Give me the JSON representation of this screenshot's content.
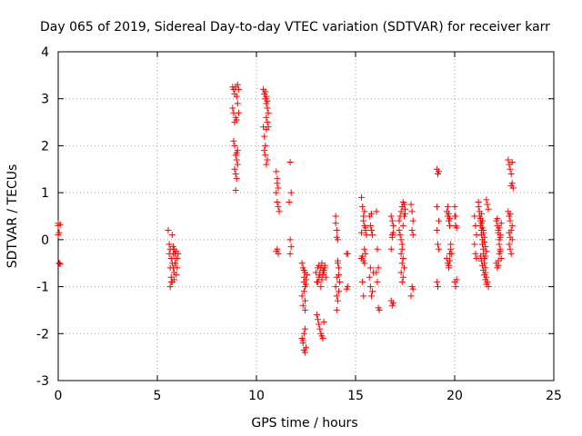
{
  "chart_data": {
    "type": "scatter",
    "title": "Day 065 of 2019, Sidereal Day-to-day VTEC variation (SDTVAR) for receiver karr",
    "xlabel": "GPS time / hours",
    "ylabel": "SDTVAR / TECUs",
    "xlim": [
      0,
      25
    ],
    "ylim": [
      -3,
      4
    ],
    "xticks": [
      0,
      5,
      10,
      15,
      20,
      25
    ],
    "yticks": [
      -3,
      -2,
      -1,
      0,
      1,
      2,
      3,
      4
    ],
    "grid": true,
    "marker": "+",
    "color": "#ff0000",
    "series": [
      {
        "name": "SDTVAR",
        "x": [
          0.0,
          0.0,
          0.0,
          0.05,
          0.05,
          0.05,
          0.1,
          0.1,
          5.55,
          5.6,
          5.6,
          5.65,
          5.65,
          5.7,
          5.7,
          5.75,
          5.75,
          5.8,
          5.8,
          5.85,
          5.85,
          5.9,
          5.9,
          5.95,
          5.95,
          6.0,
          6.0,
          6.05,
          5.65,
          5.7,
          5.75,
          5.8,
          5.85,
          5.9,
          8.8,
          8.8,
          8.85,
          8.85,
          8.9,
          8.9,
          8.95,
          8.95,
          9.0,
          9.0,
          9.05,
          9.05,
          9.1,
          9.1,
          8.85,
          8.9,
          8.95,
          9.0,
          9.05,
          8.9,
          8.95,
          9.0,
          9.05,
          8.95,
          9.0,
          10.35,
          10.35,
          10.4,
          10.4,
          10.45,
          10.45,
          10.5,
          10.5,
          10.55,
          10.55,
          10.6,
          10.6,
          10.45,
          10.5,
          10.55,
          10.4,
          10.45,
          10.5,
          10.55,
          10.5,
          11.0,
          11.05,
          11.1,
          11.0,
          11.05,
          11.1,
          11.15,
          11.05,
          11.1,
          11.0,
          11.05,
          11.7,
          11.75,
          11.7,
          11.75,
          11.7,
          11.65,
          12.3,
          12.35,
          12.4,
          12.45,
          12.3,
          12.35,
          12.4,
          12.45,
          12.3,
          12.35,
          12.4,
          12.45,
          12.5,
          12.35,
          12.4,
          12.45,
          12.4,
          12.45,
          12.5,
          12.55,
          12.4,
          12.45,
          12.5,
          13.0,
          13.05,
          13.1,
          13.15,
          13.2,
          13.25,
          13.3,
          13.35,
          13.4,
          13.45,
          13.5,
          13.05,
          13.1,
          13.15,
          13.2,
          13.25,
          13.3,
          13.35,
          13.4,
          13.1,
          13.15,
          13.2,
          13.25,
          13.3,
          13.35,
          13.4,
          13.45,
          14.0,
          14.0,
          14.05,
          14.05,
          14.1,
          14.1,
          14.15,
          14.15,
          14.2,
          14.0,
          14.05,
          14.1,
          14.15,
          14.05,
          14.1,
          14.05,
          14.55,
          14.6,
          14.55,
          14.6,
          15.3,
          15.35,
          15.4,
          15.45,
          15.5,
          15.55,
          15.3,
          15.35,
          15.4,
          15.45,
          15.5,
          15.4,
          15.45,
          15.5,
          15.35,
          15.4,
          15.45,
          15.3,
          15.7,
          15.75,
          15.8,
          15.85,
          15.9,
          15.7,
          15.75,
          15.8,
          15.85,
          15.75,
          15.8,
          16.05,
          16.1,
          16.15,
          16.05,
          16.1,
          16.15,
          16.2,
          16.8,
          16.85,
          16.9,
          16.8,
          16.85,
          16.9,
          16.85,
          16.8,
          16.85,
          16.9,
          17.2,
          17.25,
          17.3,
          17.35,
          17.4,
          17.45,
          17.5,
          17.2,
          17.25,
          17.3,
          17.35,
          17.4,
          17.45,
          17.3,
          17.35,
          17.4,
          17.3,
          17.35,
          17.4,
          17.45,
          17.5,
          17.35,
          17.8,
          17.85,
          17.9,
          17.85,
          17.9,
          17.85,
          17.9,
          17.8,
          19.1,
          19.15,
          19.2,
          19.1,
          19.15,
          19.2,
          19.1,
          19.15,
          19.1,
          19.2,
          19.6,
          19.65,
          19.7,
          19.75,
          19.8,
          19.85,
          19.6,
          19.65,
          19.7,
          19.75,
          19.8,
          19.65,
          19.7,
          19.75,
          19.7,
          19.75,
          20.0,
          20.05,
          20.1,
          20.0,
          20.05,
          20.1,
          20.0,
          20.05,
          21.0,
          21.05,
          21.1,
          21.0,
          21.05,
          21.1,
          21.2,
          21.25,
          21.3,
          21.35,
          21.4,
          21.45,
          21.5,
          21.55,
          21.6,
          21.65,
          21.7,
          21.2,
          21.25,
          21.3,
          21.35,
          21.4,
          21.45,
          21.5,
          21.55,
          21.6,
          21.65,
          21.7,
          21.3,
          21.35,
          21.4,
          21.45,
          21.5,
          21.55,
          21.6,
          21.3,
          21.35,
          21.4,
          21.45,
          21.5,
          21.55,
          21.6,
          21.35,
          21.4,
          21.45,
          21.5,
          21.55,
          22.1,
          22.15,
          22.2,
          22.25,
          22.3,
          22.35,
          22.1,
          22.15,
          22.2,
          22.25,
          22.3,
          22.35,
          22.15,
          22.2,
          22.25,
          22.3,
          22.2,
          22.25,
          22.3,
          22.7,
          22.75,
          22.8,
          22.85,
          22.9,
          22.95,
          22.7,
          22.75,
          22.8,
          22.85,
          22.9,
          22.75,
          22.8,
          22.85,
          22.9,
          22.8,
          22.85,
          22.9,
          22.75,
          22.8
        ],
        "y": [
          0.35,
          0.3,
          0.1,
          -0.5,
          -0.5,
          0.15,
          -0.52,
          0.32,
          0.2,
          -0.1,
          -0.3,
          -0.6,
          -0.2,
          -0.8,
          -0.4,
          -0.5,
          -0.9,
          -0.3,
          -0.6,
          -0.2,
          -0.7,
          -0.3,
          -0.5,
          -0.25,
          -0.75,
          -0.4,
          -0.6,
          -0.3,
          -1.0,
          -0.9,
          0.1,
          -0.15,
          -0.85,
          -0.5,
          3.25,
          2.8,
          3.2,
          2.7,
          3.1,
          2.5,
          3.25,
          2.6,
          3.05,
          2.55,
          3.3,
          2.9,
          3.2,
          2.7,
          2.1,
          2.0,
          1.8,
          1.7,
          1.9,
          1.5,
          1.4,
          1.3,
          1.6,
          1.05,
          1.85,
          3.2,
          2.4,
          3.1,
          2.2,
          3.0,
          2.0,
          2.9,
          2.6,
          2.8,
          2.5,
          2.7,
          2.4,
          1.8,
          1.6,
          1.7,
          1.9,
          3.15,
          3.05,
          2.95,
          2.35,
          1.45,
          1.3,
          1.1,
          1.0,
          0.8,
          0.7,
          0.6,
          -0.2,
          -0.3,
          -0.25,
          1.2,
          1.65,
          1.0,
          0.0,
          -0.15,
          -0.3,
          0.8,
          -0.5,
          -0.6,
          -0.8,
          -1.0,
          -1.2,
          -1.4,
          -0.9,
          -0.7,
          -2.1,
          -2.2,
          -2.35,
          -2.4,
          -2.3,
          -2.15,
          -2.0,
          -1.9,
          -1.1,
          -1.3,
          -0.85,
          -0.75,
          -0.65,
          -1.5,
          -0.95,
          -0.7,
          -0.9,
          -0.6,
          -0.8,
          -0.75,
          -1.0,
          -0.85,
          -0.65,
          -0.7,
          -0.6,
          -0.8,
          -1.6,
          -1.7,
          -1.8,
          -1.9,
          -2.0,
          -2.05,
          -2.1,
          -1.75,
          -0.9,
          -0.55,
          -0.7,
          -0.6,
          -0.5,
          -0.75,
          -0.65,
          -0.55,
          0.5,
          0.35,
          0.2,
          0.05,
          0.0,
          -0.5,
          -0.6,
          -0.75,
          -0.9,
          -1.0,
          -1.2,
          -1.3,
          -1.1,
          -0.8,
          -0.45,
          -1.5,
          -0.3,
          -0.3,
          -1.05,
          -1.0,
          0.9,
          0.7,
          0.5,
          0.3,
          0.2,
          0.1,
          -0.4,
          -0.35,
          -0.45,
          -0.5,
          -0.3,
          0.4,
          0.6,
          0.25,
          -0.9,
          -1.2,
          -0.2,
          0.15,
          0.5,
          0.3,
          0.2,
          0.1,
          -0.7,
          -0.8,
          -1.0,
          -1.2,
          -1.1,
          -0.6,
          0.55,
          0.6,
          -0.2,
          -0.6,
          -0.7,
          -0.9,
          -1.45,
          -1.5,
          -1.3,
          -1.4,
          -1.35,
          -0.2,
          0.1,
          0.15,
          0.05,
          0.5,
          0.4,
          0.3,
          0.4,
          0.5,
          0.6,
          0.7,
          0.8,
          0.75,
          0.65,
          0.2,
          0.1,
          0.0,
          -0.2,
          -0.4,
          -0.6,
          -0.7,
          -0.5,
          -0.8,
          -0.3,
          -0.1,
          0.3,
          0.5,
          0.55,
          -0.9,
          0.75,
          0.6,
          0.4,
          0.2,
          0.1,
          -1.0,
          -1.05,
          -1.2,
          1.5,
          1.4,
          0.4,
          0.2,
          -0.1,
          -0.2,
          -0.9,
          -1.0,
          0.7,
          1.45,
          0.6,
          0.5,
          0.4,
          0.3,
          -0.2,
          -0.3,
          -0.4,
          -0.5,
          -0.6,
          -0.3,
          -0.1,
          0.7,
          -0.55,
          -0.45,
          0.55,
          0.45,
          0.7,
          0.5,
          0.25,
          -0.9,
          -1.0,
          -0.85,
          0.5,
          0.3,
          0.5,
          0.3,
          0.1,
          -0.1,
          -0.3,
          -0.4,
          0.8,
          0.6,
          0.4,
          0.2,
          0.0,
          -0.2,
          -0.4,
          -0.6,
          -0.8,
          -0.9,
          -1.0,
          0.7,
          0.5,
          0.3,
          0.1,
          -0.1,
          -0.3,
          -0.5,
          -0.7,
          0.85,
          0.75,
          0.65,
          0.45,
          0.35,
          0.25,
          0.15,
          0.05,
          -0.15,
          -0.25,
          -0.35,
          -0.45,
          -0.55,
          -0.65,
          -0.75,
          -0.85,
          -0.95,
          0.55,
          0.4,
          0.2,
          -0.05,
          -0.35,
          0.4,
          0.3,
          0.2,
          0.0,
          -0.2,
          -0.4,
          -0.5,
          -0.6,
          -0.55,
          -0.3,
          0.1,
          0.35,
          0.45,
          0.15,
          -0.1,
          -0.25,
          -0.45,
          0.25,
          0.05,
          1.7,
          1.6,
          1.5,
          1.4,
          1.2,
          1.1,
          0.6,
          0.5,
          0.4,
          0.2,
          0.0,
          -0.1,
          -0.2,
          -0.3,
          0.3,
          0.55,
          1.15,
          1.65,
          0.15,
          0.05
        ]
      }
    ]
  }
}
